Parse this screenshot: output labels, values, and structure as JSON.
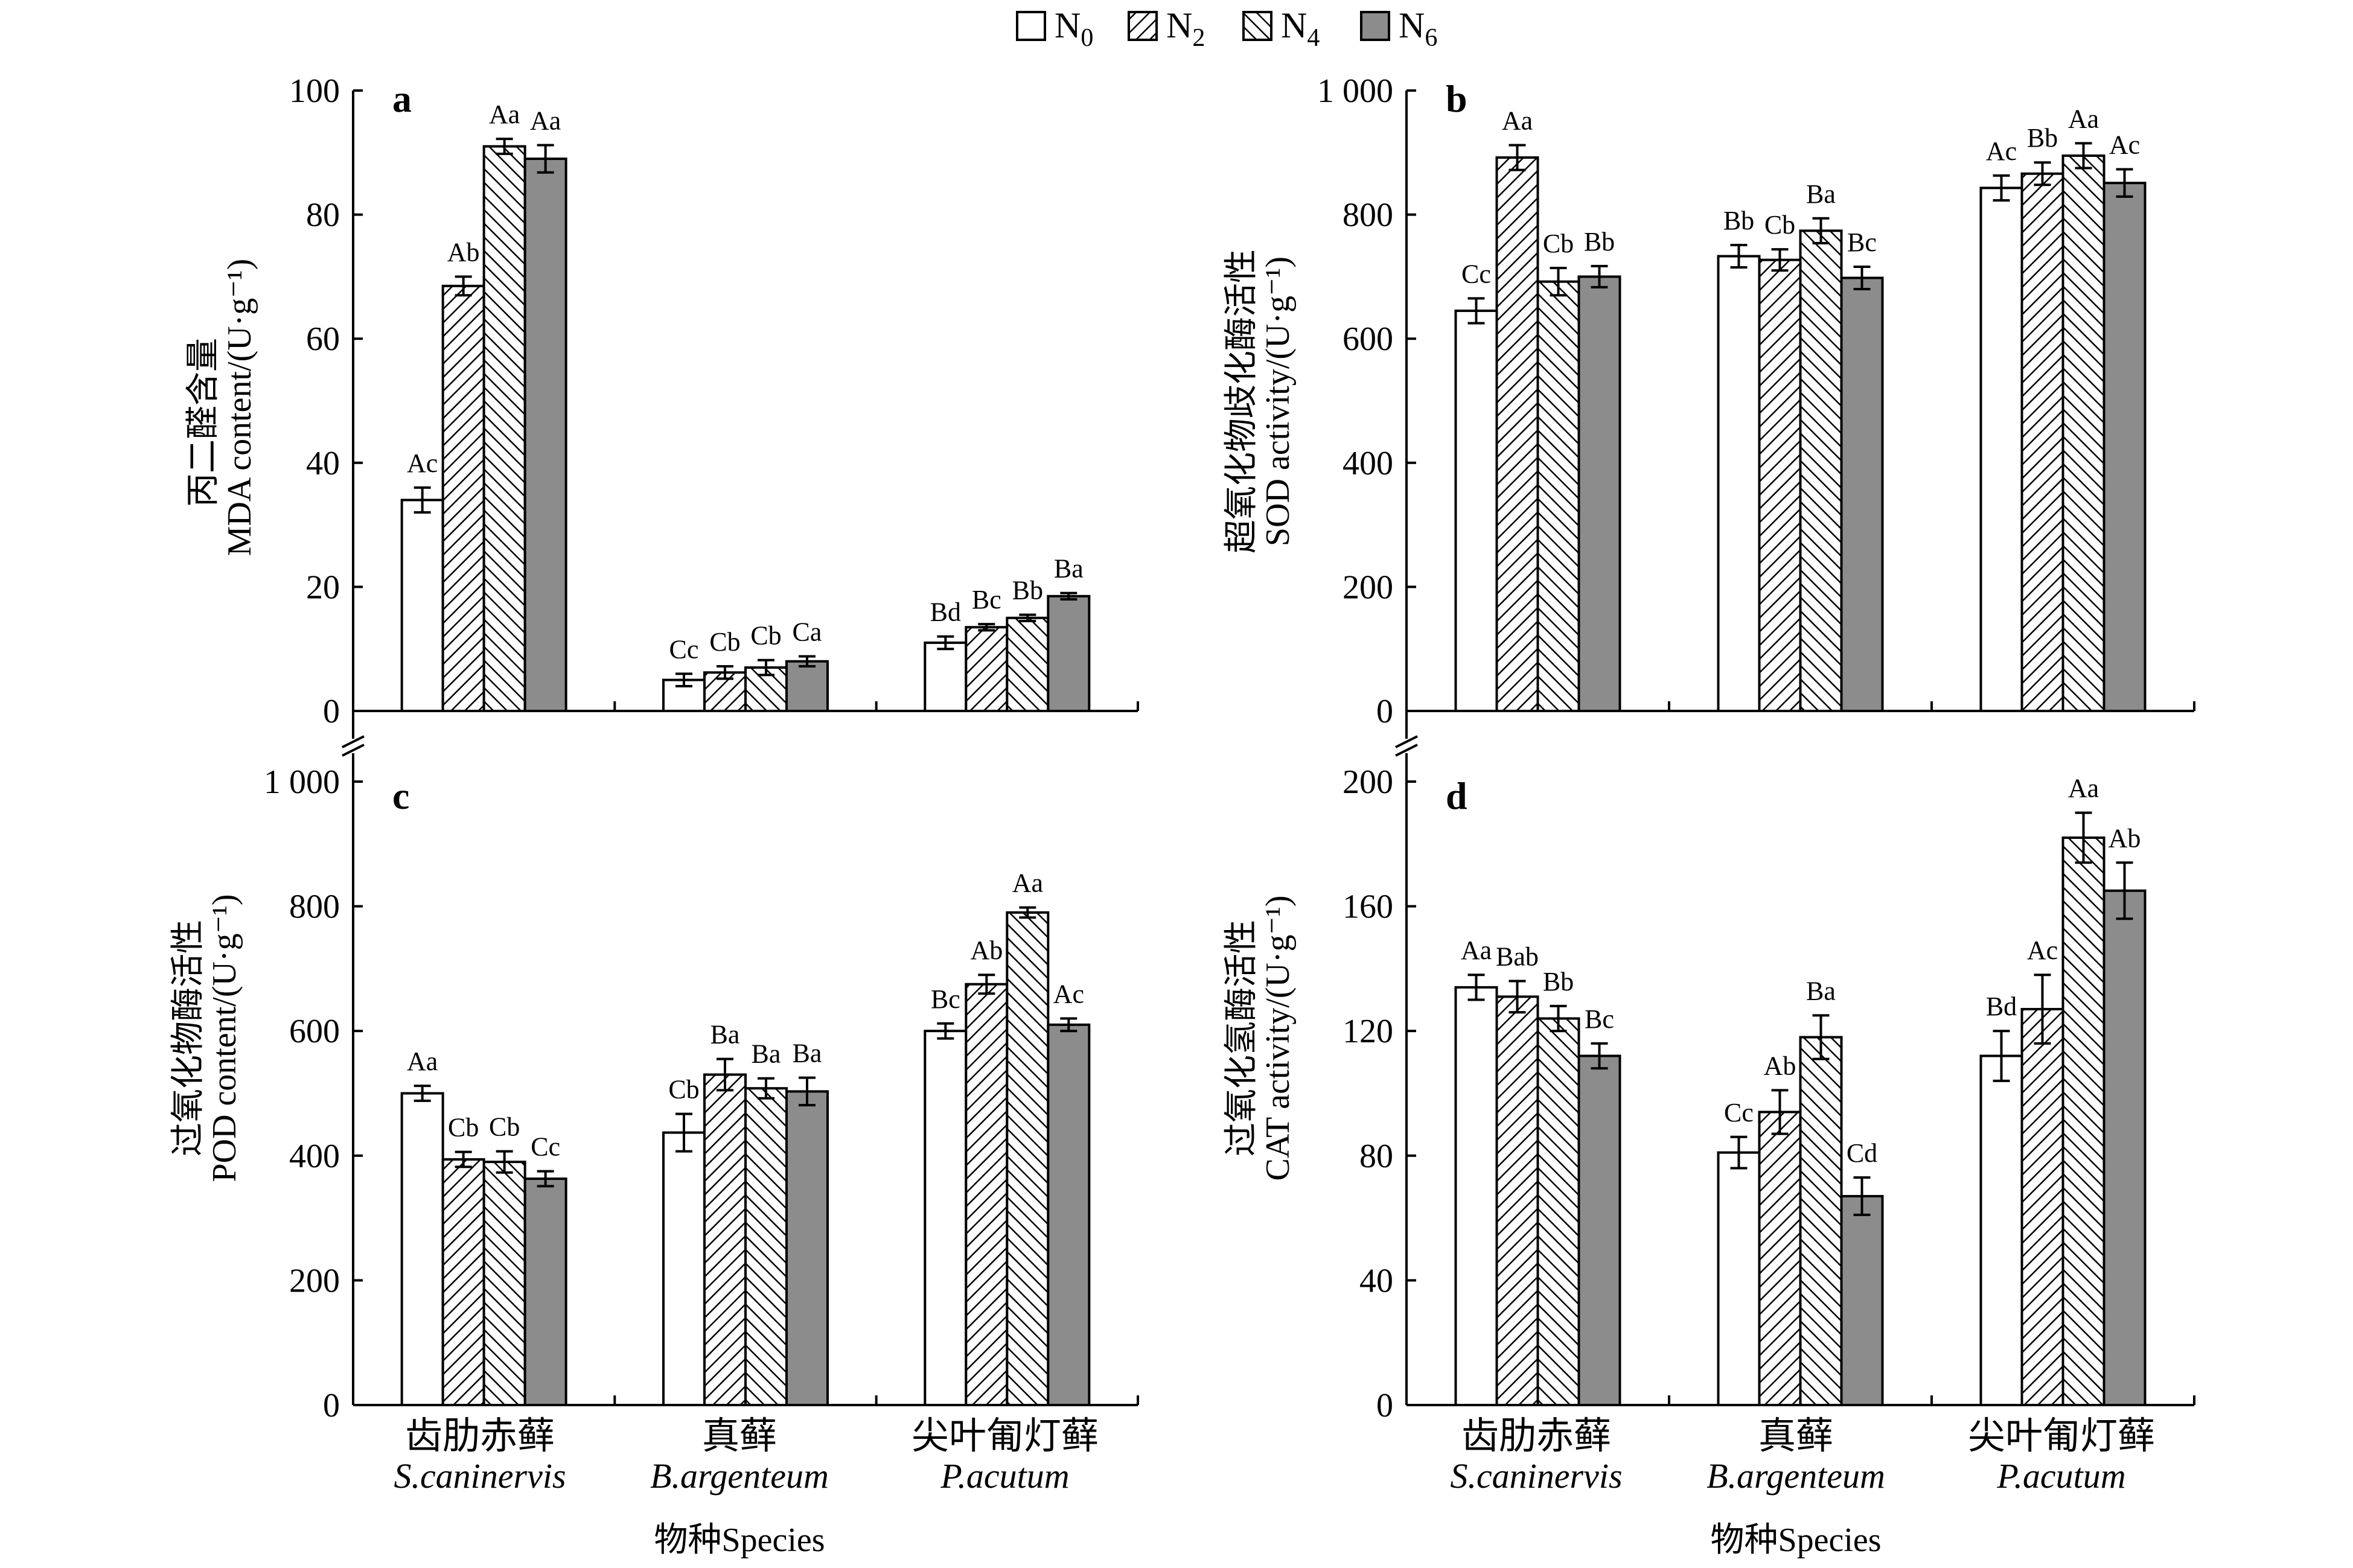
{
  "legend": [
    {
      "base": "N",
      "sub": "0",
      "fill": "white"
    },
    {
      "base": "N",
      "sub": "2",
      "fill": "hatch-fwd"
    },
    {
      "base": "N",
      "sub": "4",
      "fill": "hatch-back"
    },
    {
      "base": "N",
      "sub": "6",
      "fill": "gray"
    }
  ],
  "colors": {
    "gray_fill": "#8c8c8c",
    "outline": "#000000",
    "background": "#ffffff"
  },
  "xlabel": "物种Species",
  "categories": [
    {
      "cn": "齿肋赤藓",
      "latin": "S.caninervis"
    },
    {
      "cn": "真藓",
      "latin": "B.argenteum"
    },
    {
      "cn": "尖叶匍灯藓",
      "latin": "P.acutum"
    }
  ],
  "chart_data": [
    {
      "type": "bar",
      "panel": "a",
      "ylabel_cn": "丙二醛含量",
      "ylabel_en": "MDA content/(U·g⁻¹)",
      "ylim": [
        0,
        100
      ],
      "yticks": [
        0,
        20,
        40,
        60,
        80,
        100
      ],
      "ytick_labels": [
        "0",
        "20",
        "40",
        "60",
        "80",
        "100"
      ],
      "series": [
        {
          "name": "N0",
          "values": [
            34,
            5,
            11
          ],
          "errors": [
            2,
            1,
            1
          ],
          "labels": [
            "Ac",
            "Cc",
            "Bd"
          ]
        },
        {
          "name": "N2",
          "values": [
            68.5,
            6.2,
            13.5
          ],
          "errors": [
            1.5,
            1,
            0.5
          ],
          "labels": [
            "Ab",
            "Cb",
            "Bc"
          ]
        },
        {
          "name": "N4",
          "values": [
            91,
            7,
            15
          ],
          "errors": [
            1.2,
            1.2,
            0.5
          ],
          "labels": [
            "Aa",
            "Cb",
            "Bb"
          ]
        },
        {
          "name": "N6",
          "values": [
            89,
            8,
            18.5
          ],
          "errors": [
            2.2,
            0.8,
            0.5
          ],
          "labels": [
            "Aa",
            "Ca",
            "Ba"
          ]
        }
      ]
    },
    {
      "type": "bar",
      "panel": "b",
      "ylabel_cn": "超氧化物歧化酶活性",
      "ylabel_en": "SOD activity/(U·g⁻¹)",
      "ylim": [
        0,
        1000
      ],
      "yticks": [
        0,
        200,
        400,
        600,
        800,
        1000
      ],
      "ytick_labels": [
        "0",
        "200",
        "400",
        "600",
        "800",
        "1 000"
      ],
      "series": [
        {
          "name": "N0",
          "values": [
            645,
            733,
            843
          ],
          "errors": [
            20,
            18,
            20
          ],
          "labels": [
            "Cc",
            "Bb",
            "Ac"
          ]
        },
        {
          "name": "N2",
          "values": [
            892,
            727,
            866
          ],
          "errors": [
            20,
            17,
            18
          ],
          "labels": [
            "Aa",
            "Cb",
            "Bb"
          ]
        },
        {
          "name": "N4",
          "values": [
            692,
            774,
            895
          ],
          "errors": [
            22,
            20,
            20
          ],
          "labels": [
            "Cb",
            "Ba",
            "Aa"
          ]
        },
        {
          "name": "N6",
          "values": [
            700,
            698,
            851
          ],
          "errors": [
            17,
            18,
            22
          ],
          "labels": [
            "Bb",
            "Bc",
            "Ac"
          ]
        }
      ]
    },
    {
      "type": "bar",
      "panel": "c",
      "ylabel_cn": "过氧化物酶活性",
      "ylabel_en": "POD content/(U·g⁻¹)",
      "ylim": [
        0,
        1000
      ],
      "yticks": [
        0,
        200,
        400,
        600,
        800,
        1000
      ],
      "ytick_labels": [
        "0",
        "200",
        "400",
        "600",
        "800",
        "1 000"
      ],
      "series": [
        {
          "name": "N0",
          "values": [
            500,
            437,
            600
          ],
          "errors": [
            12,
            30,
            12
          ],
          "labels": [
            "Aa",
            "Cb",
            "Bc"
          ]
        },
        {
          "name": "N2",
          "values": [
            394,
            530,
            675
          ],
          "errors": [
            12,
            25,
            15
          ],
          "labels": [
            "Cb",
            "Ba",
            "Ab"
          ]
        },
        {
          "name": "N4",
          "values": [
            390,
            508,
            790
          ],
          "errors": [
            17,
            16,
            8
          ],
          "labels": [
            "Cb",
            "Ba",
            "Aa"
          ]
        },
        {
          "name": "N6",
          "values": [
            363,
            503,
            610
          ],
          "errors": [
            12,
            22,
            10
          ],
          "labels": [
            "Cc",
            "Ba",
            "Ac"
          ]
        }
      ]
    },
    {
      "type": "bar",
      "panel": "d",
      "ylabel_cn": "过氧化氢酶活性",
      "ylabel_en": "CAT activity/(U·g⁻¹)",
      "ylim": [
        0,
        200
      ],
      "yticks": [
        0,
        40,
        80,
        120,
        160,
        200
      ],
      "ytick_labels": [
        "0",
        "40",
        "80",
        "120",
        "160",
        "200"
      ],
      "series": [
        {
          "name": "N0",
          "values": [
            134,
            81,
            112
          ],
          "errors": [
            4,
            5,
            8
          ],
          "labels": [
            "Aa",
            "Cc",
            "Bd"
          ]
        },
        {
          "name": "N2",
          "values": [
            131,
            94,
            127
          ],
          "errors": [
            5,
            7,
            11
          ],
          "labels": [
            "Bab",
            "Ab",
            "Ac"
          ]
        },
        {
          "name": "N4",
          "values": [
            124,
            118,
            182
          ],
          "errors": [
            4,
            7,
            8
          ],
          "labels": [
            "Bb",
            "Ba",
            "Aa"
          ]
        },
        {
          "name": "N6",
          "values": [
            112,
            67,
            165
          ],
          "errors": [
            4,
            6,
            9
          ],
          "labels": [
            "Bc",
            "Cd",
            "Ab"
          ]
        }
      ]
    }
  ]
}
